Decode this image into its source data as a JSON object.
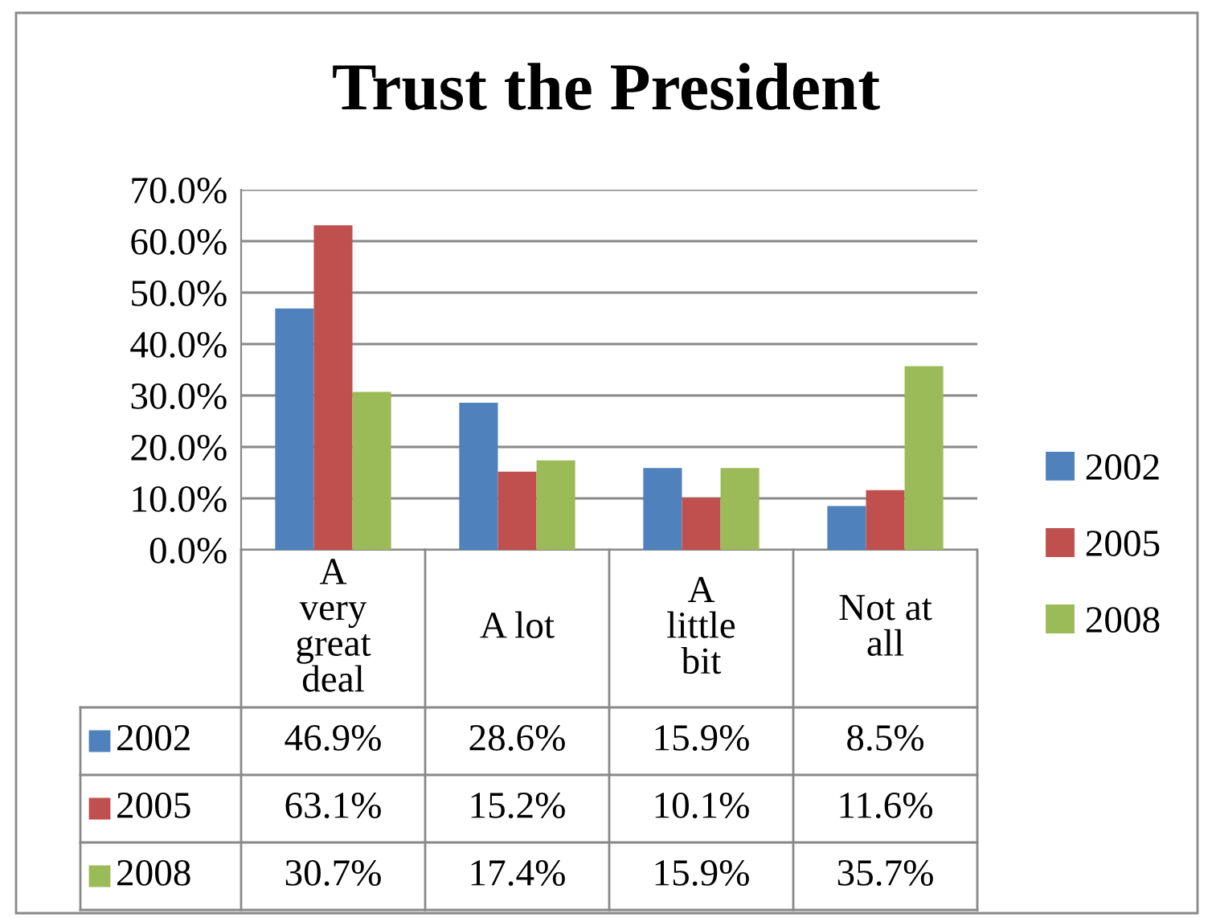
{
  "chart_data": {
    "type": "bar",
    "title": "Trust the President",
    "categories": [
      "A very great deal",
      "A lot",
      "A little bit",
      "Not at all"
    ],
    "series": [
      {
        "name": "2002",
        "color": "#4f81bd",
        "values": [
          46.9,
          28.6,
          15.9,
          8.5
        ],
        "value_labels": [
          "46.9%",
          "28.6%",
          "15.9%",
          "8.5%"
        ]
      },
      {
        "name": "2005",
        "color": "#c0504d",
        "values": [
          63.1,
          15.2,
          10.1,
          11.6
        ],
        "value_labels": [
          "63.1%",
          "15.2%",
          "10.1%",
          "11.6%"
        ]
      },
      {
        "name": "2008",
        "color": "#9bbb59",
        "values": [
          30.7,
          17.4,
          15.9,
          35.7
        ],
        "value_labels": [
          "30.7%",
          "17.4%",
          "15.9%",
          "35.7%"
        ]
      }
    ],
    "ylim": [
      0,
      70
    ],
    "yticks": [
      {
        "value": 0,
        "label": "0.0%"
      },
      {
        "value": 10,
        "label": "10.0%"
      },
      {
        "value": 20,
        "label": "20.0%"
      },
      {
        "value": 30,
        "label": "30.0%"
      },
      {
        "value": 40,
        "label": "40.0%"
      },
      {
        "value": 50,
        "label": "50.0%"
      },
      {
        "value": 60,
        "label": "60.0%"
      },
      {
        "value": 70,
        "label": "70.0%"
      }
    ],
    "grid": "y",
    "legend": "right"
  }
}
